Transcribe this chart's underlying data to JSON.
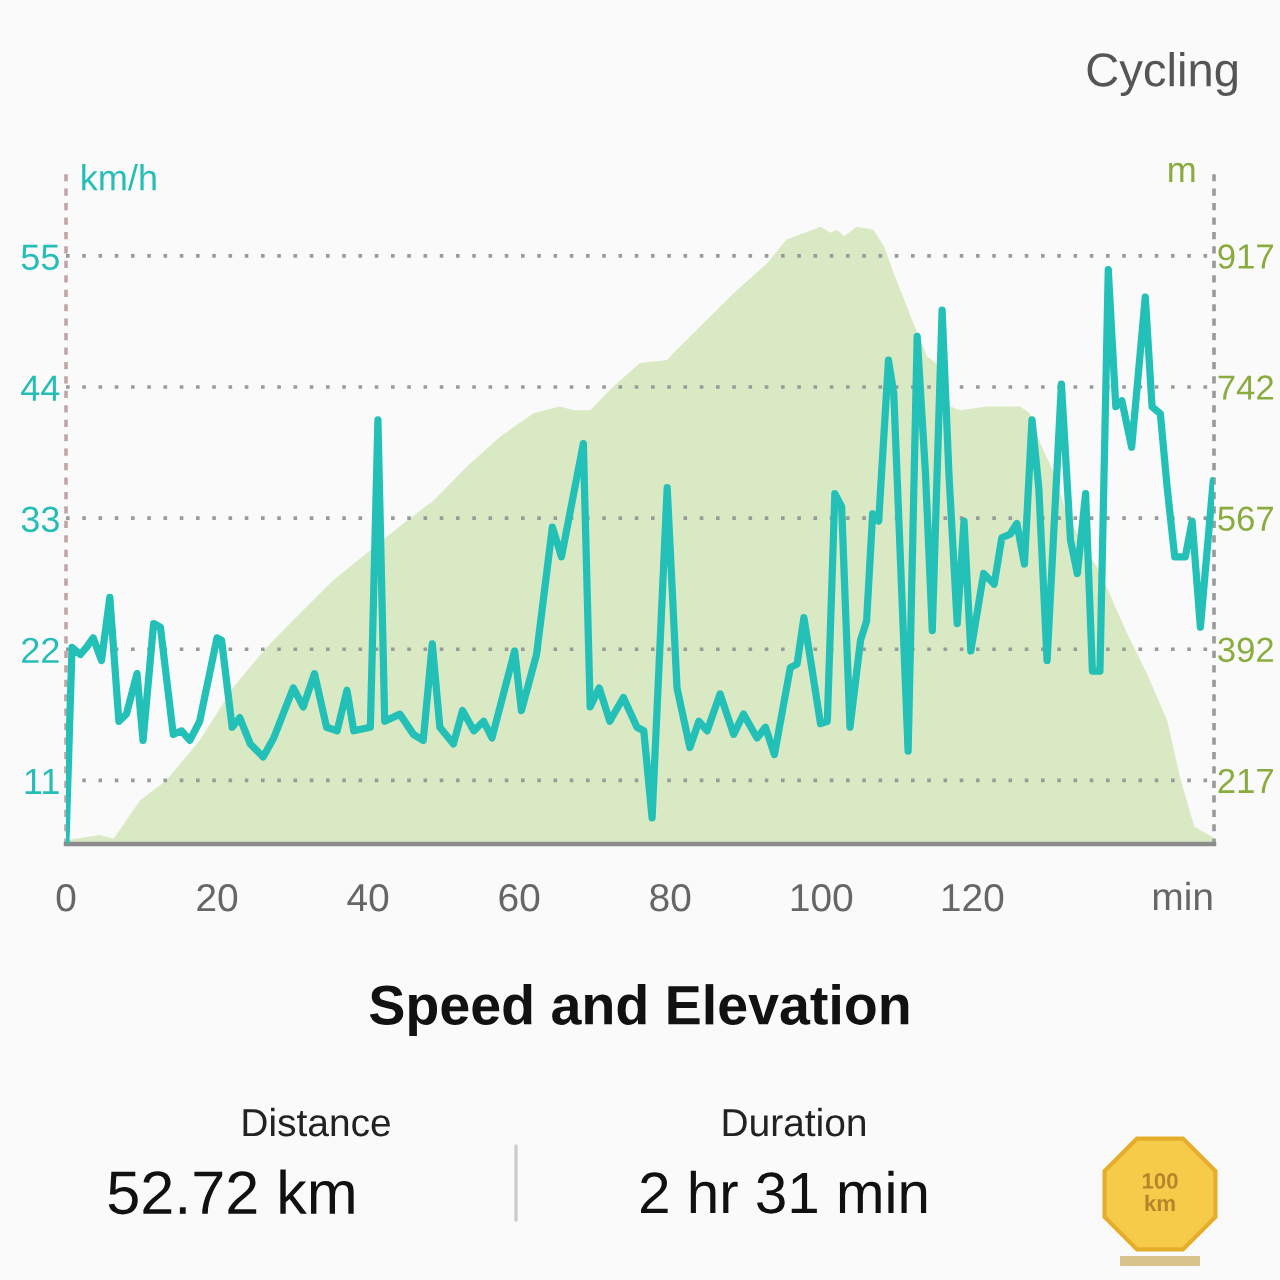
{
  "chart_data": {
    "type": "line",
    "title": "Speed and Elevation",
    "subtitle": "Cycling",
    "xlabel": "min",
    "ylabel": "km/h",
    "y2label": "m",
    "annotations": [
      "Distance",
      "52.72 km",
      "Duration",
      "2 hr 31 min",
      "100\nkm"
    ],
    "xlim": [
      0,
      152
    ],
    "xticks": [
      0,
      20,
      40,
      60,
      80,
      100,
      120
    ],
    "ylim": [
      5.7,
      62.6
    ],
    "yticks": [
      11,
      22,
      33,
      44,
      55
    ],
    "y2lim": [
      132,
      1037
    ],
    "y2ticks": [
      217,
      392,
      567,
      742,
      917
    ],
    "grid": "y",
    "series": [
      {
        "type": "area",
        "axis": "y2",
        "color": "#d9e9c3",
        "x": [
          0,
          4.5,
          6.3,
          9.8,
          13.3,
          17.7,
          22.2,
          26.6,
          31.0,
          35.4,
          39.8,
          44.2,
          48.7,
          53.1,
          57.5,
          61.9,
          65.4,
          67.2,
          69.4,
          72.5,
          76.0,
          79.6,
          80.4,
          84.9,
          88.4,
          92.8,
          95.4,
          99.9,
          101.2,
          102.1,
          103.0,
          104.7,
          106.9,
          108.3,
          109.6,
          111.3,
          112.2,
          114.0,
          115.8,
          117.1,
          118.4,
          121.9,
          126.3,
          127.6,
          129.0,
          130.8,
          132.5,
          134.3,
          137.0,
          140.5,
          143.1,
          145.8,
          147.6,
          149.4,
          151.9
        ],
        "values": [
          137,
          144,
          139,
          190,
          217,
          270,
          342,
          395,
          440,
          484,
          520,
          556,
          591,
          636,
          676,
          707,
          716,
          711,
          711,
          743,
          774,
          778,
          787,
          832,
          867,
          907,
          939,
          956,
          948,
          952,
          943,
          956,
          952,
          930,
          894,
          850,
          827,
          783,
          769,
          716,
          711,
          716,
          716,
          707,
          667,
          627,
          573,
          538,
          493,
          413,
          360,
          297,
          217,
          155,
          141
        ]
      },
      {
        "color": "#22c0b6",
        "x": [
          0,
          0.8,
          1.9,
          2.7,
          3.6,
          4.7,
          5.8,
          7.0,
          8.0,
          9.4,
          10.2,
          11.6,
          12.5,
          14.2,
          15.3,
          16.4,
          17.7,
          20.0,
          20.6,
          22.0,
          23.0,
          24.4,
          26.1,
          27.5,
          30.1,
          31.4,
          32.9,
          34.5,
          35.9,
          37.2,
          38.1,
          40.3,
          41.3,
          42.2,
          44.2,
          46.0,
          47.3,
          48.5,
          49.5,
          51.3,
          52.5,
          54.0,
          55.3,
          56.4,
          59.4,
          60.3,
          62.3,
          64.4,
          65.6,
          68.5,
          69.4,
          70.6,
          72.0,
          73.8,
          75.6,
          76.5,
          77.6,
          79.6,
          80.9,
          82.6,
          83.8,
          84.9,
          86.6,
          88.4,
          89.7,
          91.5,
          92.6,
          93.8,
          95.9,
          96.8,
          97.7,
          99.9,
          100.8,
          101.8,
          102.7,
          103.8,
          105.2,
          106.0,
          106.8,
          107.6,
          108.9,
          109.6,
          111.5,
          112.7,
          113.8,
          114.7,
          116.0,
          116.9,
          118.0,
          118.9,
          119.8,
          121.5,
          122.9,
          123.9,
          125.0,
          125.9,
          126.9,
          127.9,
          128.8,
          129.9,
          131.8,
          133.0,
          133.9,
          135.0,
          135.9,
          136.9,
          138.0,
          139.0,
          139.8,
          141.1,
          142.9,
          143.8,
          144.9,
          145.8,
          146.8,
          148.2,
          149.1,
          150.2,
          151.9
        ],
        "values": [
          6,
          22.2,
          21.6,
          22.2,
          23,
          21.1,
          26.4,
          16.0,
          16.6,
          20,
          14.4,
          24.2,
          23.9,
          14.9,
          15.2,
          14.4,
          16,
          23,
          22.8,
          15.5,
          16.3,
          14.1,
          13,
          14.6,
          18.8,
          17.2,
          20,
          15.5,
          15.2,
          18.6,
          15.2,
          15.5,
          41.3,
          16,
          16.6,
          14.9,
          14.4,
          22.5,
          15.5,
          14.1,
          16.9,
          15.2,
          16,
          14.6,
          21.9,
          16.9,
          21.6,
          32.3,
          29.8,
          39.3,
          17.2,
          18.8,
          16,
          18,
          15.5,
          15.2,
          7.9,
          35.6,
          18.8,
          13.8,
          16,
          15.2,
          18.3,
          14.9,
          16.6,
          14.6,
          15.5,
          13.2,
          20.5,
          20.8,
          24.7,
          15.8,
          16,
          35.1,
          34,
          15.5,
          22.8,
          24.4,
          33.4,
          32.8,
          46.3,
          43.5,
          13.5,
          48.3,
          36.8,
          23.6,
          50.5,
          36.8,
          24.2,
          32.8,
          21.9,
          28.4,
          27.5,
          31.4,
          31.7,
          32.6,
          29.2,
          41.3,
          35.6,
          21.1,
          44.3,
          31.2,
          28.4,
          35.1,
          20.2,
          20.2,
          53.9,
          42.4,
          42.9,
          39,
          51.6,
          42.4,
          41.8,
          35.6,
          29.8,
          29.8,
          32.8,
          23.9,
          36.2
        ]
      }
    ]
  }
}
